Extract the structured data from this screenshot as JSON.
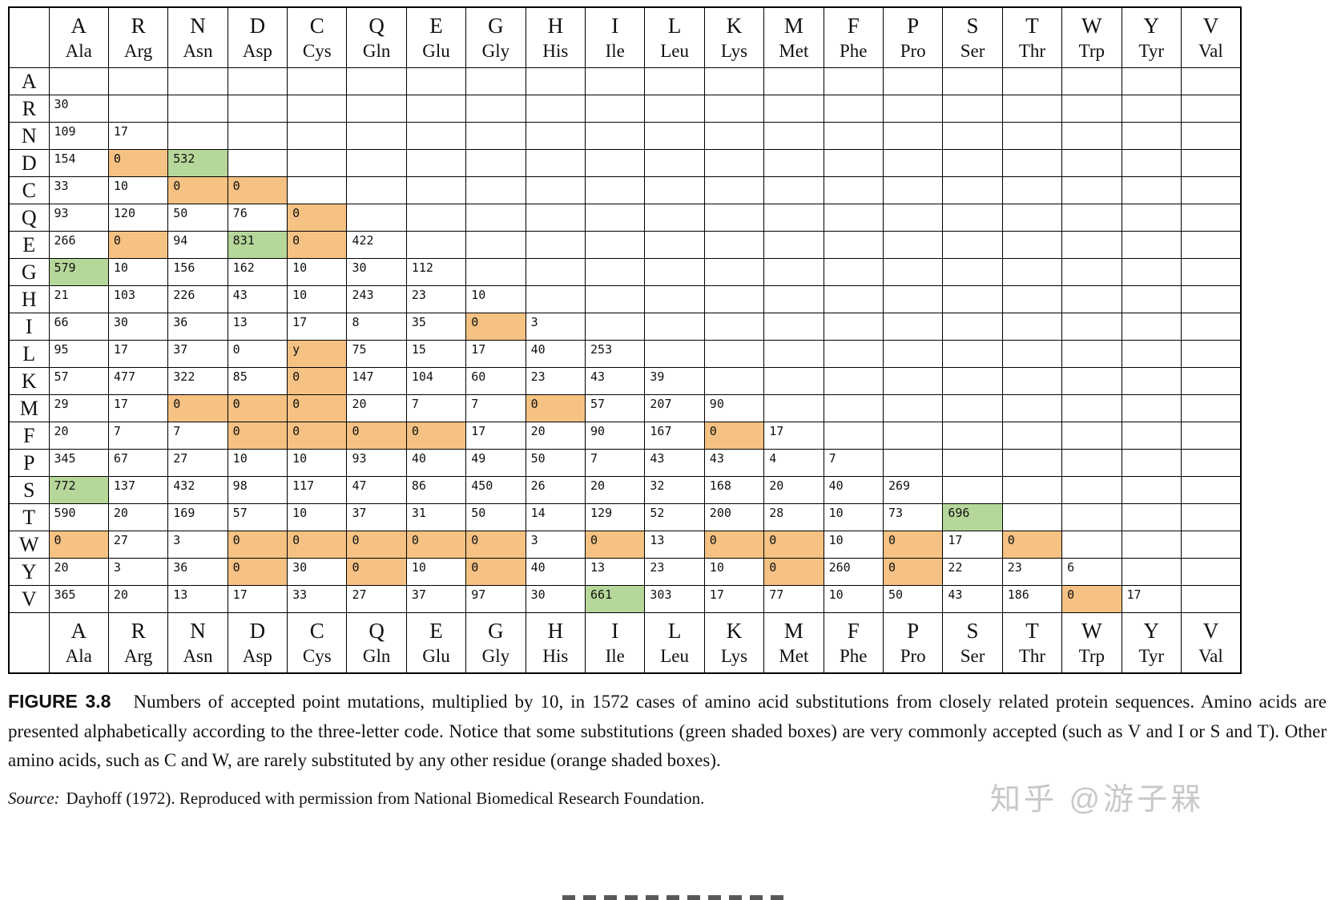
{
  "colors": {
    "orange": "#f5c283",
    "green": "#b6d79a",
    "border": "#000000",
    "watermark_gray": "#c8c8c8"
  },
  "table": {
    "amino_acids": [
      {
        "letter": "A",
        "code": "Ala"
      },
      {
        "letter": "R",
        "code": "Arg"
      },
      {
        "letter": "N",
        "code": "Asn"
      },
      {
        "letter": "D",
        "code": "Asp"
      },
      {
        "letter": "C",
        "code": "Cys"
      },
      {
        "letter": "Q",
        "code": "Gln"
      },
      {
        "letter": "E",
        "code": "Glu"
      },
      {
        "letter": "G",
        "code": "Gly"
      },
      {
        "letter": "H",
        "code": "His"
      },
      {
        "letter": "I",
        "code": "Ile"
      },
      {
        "letter": "L",
        "code": "Leu"
      },
      {
        "letter": "K",
        "code": "Lys"
      },
      {
        "letter": "M",
        "code": "Met"
      },
      {
        "letter": "F",
        "code": "Phe"
      },
      {
        "letter": "P",
        "code": "Pro"
      },
      {
        "letter": "S",
        "code": "Ser"
      },
      {
        "letter": "T",
        "code": "Thr"
      },
      {
        "letter": "W",
        "code": "Trp"
      },
      {
        "letter": "Y",
        "code": "Tyr"
      },
      {
        "letter": "V",
        "code": "Val"
      }
    ],
    "rows": [
      {
        "label": "A",
        "values": []
      },
      {
        "label": "R",
        "values": [
          "30"
        ]
      },
      {
        "label": "N",
        "values": [
          "109",
          "17"
        ]
      },
      {
        "label": "D",
        "values": [
          "154",
          "0",
          "532"
        ],
        "orange": [
          1
        ],
        "green": [
          2
        ]
      },
      {
        "label": "C",
        "values": [
          "33",
          "10",
          "0",
          "0"
        ],
        "orange": [
          2,
          3
        ]
      },
      {
        "label": "Q",
        "values": [
          "93",
          "120",
          "50",
          "76",
          "0"
        ],
        "orange": [
          4
        ]
      },
      {
        "label": "E",
        "values": [
          "266",
          "0",
          "94",
          "831",
          "0",
          "422"
        ],
        "orange": [
          1,
          4
        ],
        "green": [
          3
        ]
      },
      {
        "label": "G",
        "values": [
          "579",
          "10",
          "156",
          "162",
          "10",
          "30",
          "112"
        ],
        "green": [
          0
        ]
      },
      {
        "label": "H",
        "values": [
          "21",
          "103",
          "226",
          "43",
          "10",
          "243",
          "23",
          "10"
        ]
      },
      {
        "label": "I",
        "values": [
          "66",
          "30",
          "36",
          "13",
          "17",
          "8",
          "35",
          "0",
          "3"
        ],
        "orange": [
          7
        ]
      },
      {
        "label": "L",
        "values": [
          "95",
          "17",
          "37",
          "0",
          "y",
          "75",
          "15",
          "17",
          "40",
          "253"
        ],
        "orange": [
          4
        ]
      },
      {
        "label": "K",
        "values": [
          "57",
          "477",
          "322",
          "85",
          "0",
          "147",
          "104",
          "60",
          "23",
          "43",
          "39"
        ],
        "orange": [
          4
        ]
      },
      {
        "label": "M",
        "values": [
          "29",
          "17",
          "0",
          "0",
          "0",
          "20",
          "7",
          "7",
          "0",
          "57",
          "207",
          "90"
        ],
        "orange": [
          2,
          3,
          4,
          8
        ]
      },
      {
        "label": "F",
        "values": [
          "20",
          "7",
          "7",
          "0",
          "0",
          "0",
          "0",
          "17",
          "20",
          "90",
          "167",
          "0",
          "17"
        ],
        "orange": [
          3,
          4,
          5,
          6,
          11
        ]
      },
      {
        "label": "P",
        "values": [
          "345",
          "67",
          "27",
          "10",
          "10",
          "93",
          "40",
          "49",
          "50",
          "7",
          "43",
          "43",
          "4",
          "7"
        ]
      },
      {
        "label": "S",
        "values": [
          "772",
          "137",
          "432",
          "98",
          "117",
          "47",
          "86",
          "450",
          "26",
          "20",
          "32",
          "168",
          "20",
          "40",
          "269"
        ],
        "green": [
          0
        ]
      },
      {
        "label": "T",
        "values": [
          "590",
          "20",
          "169",
          "57",
          "10",
          "37",
          "31",
          "50",
          "14",
          "129",
          "52",
          "200",
          "28",
          "10",
          "73",
          "696"
        ],
        "green": [
          15
        ]
      },
      {
        "label": "W",
        "values": [
          "0",
          "27",
          "3",
          "0",
          "0",
          "0",
          "0",
          "0",
          "3",
          "0",
          "13",
          "0",
          "0",
          "10",
          "0",
          "17",
          "0"
        ],
        "orange": [
          0,
          3,
          4,
          5,
          6,
          7,
          9,
          11,
          12,
          14,
          16
        ]
      },
      {
        "label": "Y",
        "values": [
          "20",
          "3",
          "36",
          "0",
          "30",
          "0",
          "10",
          "0",
          "40",
          "13",
          "23",
          "10",
          "0",
          "260",
          "0",
          "22",
          "23",
          "6"
        ],
        "orange": [
          3,
          5,
          7,
          12,
          14
        ]
      },
      {
        "label": "V",
        "values": [
          "365",
          "20",
          "13",
          "17",
          "33",
          "27",
          "37",
          "97",
          "30",
          "661",
          "303",
          "17",
          "77",
          "10",
          "50",
          "43",
          "186",
          "0",
          "17"
        ],
        "green": [
          9
        ],
        "orange": [
          17
        ]
      }
    ]
  },
  "caption": {
    "figure_label": "FIGURE 3.8",
    "text": "Numbers of accepted point mutations, multiplied by 10, in 1572 cases of amino acid substitutions from closely related protein sequences. Amino acids are presented alphabetically according to the three-letter code. Notice that some substitutions (green shaded boxes) are very commonly accepted (such as V and I or S and T). Other amino acids, such as C and W, are rarely substituted by any other residue (orange shaded boxes).",
    "source_label": "Source:",
    "source_text": "Dayhoff (1972). Reproduced with permission from National Biomedical Research Foundation."
  },
  "watermark": "知乎 @游子槑"
}
